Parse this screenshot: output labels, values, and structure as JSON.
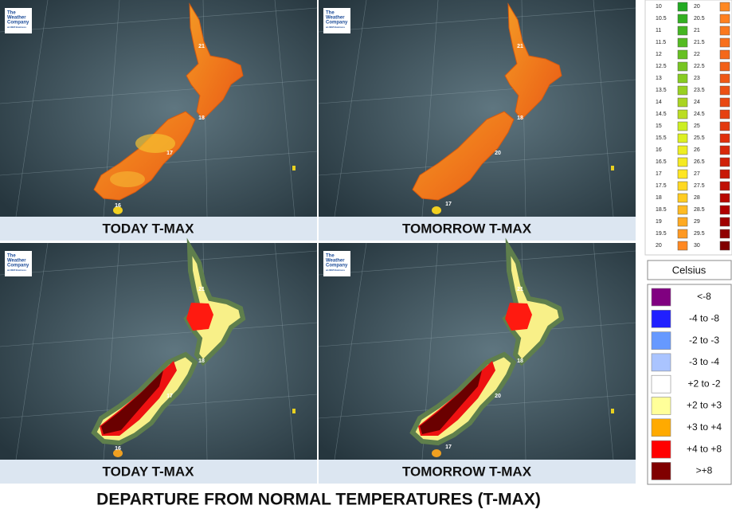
{
  "panels": [
    {
      "title": "TODAY  T-MAX",
      "labels": [
        "21",
        "18",
        "17",
        "16"
      ]
    },
    {
      "title": "TOMORROW  T-MAX",
      "labels": [
        "21",
        "18",
        "20",
        "17"
      ]
    },
    {
      "title": "TODAY  T-MAX",
      "labels": [
        "21",
        "18",
        "17",
        "16"
      ]
    },
    {
      "title": "TOMORROW  T-MAX",
      "labels": [
        "21",
        "18",
        "20",
        "17"
      ]
    }
  ],
  "logo": [
    "The",
    "Weather",
    "Company",
    "an IBM Business"
  ],
  "scale": {
    "left": [
      10,
      10.5,
      11,
      11.5,
      12,
      12.5,
      13,
      13.5,
      14,
      14.5,
      15,
      15.5,
      16,
      16.5,
      17,
      17.5,
      18,
      18.5,
      19,
      19.5,
      20
    ],
    "left_colors": [
      "#22aa22",
      "#33b022",
      "#44b522",
      "#55bb22",
      "#66c022",
      "#77c522",
      "#88cc22",
      "#99d022",
      "#aad422",
      "#bbdd22",
      "#ccee22",
      "#ddf022",
      "#eeee22",
      "#f5ea22",
      "#ffe622",
      "#ffd822",
      "#ffcc22",
      "#ffbb22",
      "#ffaa22",
      "#ff9922",
      "#ff8822"
    ],
    "right": [
      20,
      20.5,
      21,
      21.5,
      22,
      22.5,
      23,
      23.5,
      24,
      24.5,
      25,
      25.5,
      26,
      26.5,
      27,
      27.5,
      28,
      28.5,
      29,
      29.5,
      30
    ],
    "right_colors": [
      "#ff8822",
      "#ff8020",
      "#fb781e",
      "#f8701c",
      "#f5681a",
      "#f26018",
      "#ef5816",
      "#ec5014",
      "#e94812",
      "#e64010",
      "#e3380e",
      "#e0300c",
      "#d8280a",
      "#d02008",
      "#c81806",
      "#c01004",
      "#b80802",
      "#b00000",
      "#a00000",
      "#900000",
      "#800000"
    ]
  },
  "unit": "Celsius",
  "departure": [
    {
      "label": "<-8",
      "color": "#800080"
    },
    {
      "label": "-4 to -8",
      "color": "#2020ff"
    },
    {
      "label": "-2 to -3",
      "color": "#6699ff"
    },
    {
      "label": "-3 to -4",
      "color": "#aac4ff"
    },
    {
      "label": "+2 to -2",
      "color": "#ffffff"
    },
    {
      "label": "+2 to +3",
      "color": "#ffff99"
    },
    {
      "label": "+3 to +4",
      "color": "#ffaa00"
    },
    {
      "label": "+4 to +8",
      "color": "#ff0000"
    },
    {
      "label": ">+8",
      "color": "#800000"
    }
  ],
  "footer": "DEPARTURE FROM NORMAL TEMPERATURES (T-MAX)"
}
